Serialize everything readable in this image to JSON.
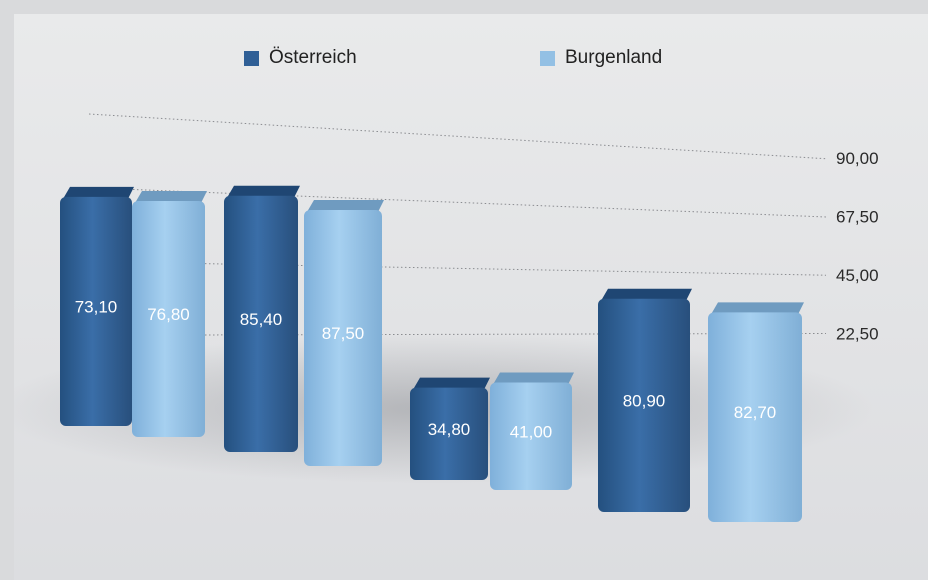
{
  "chart_data": {
    "type": "bar",
    "categories": [
      "",
      "",
      "",
      ""
    ],
    "series": [
      {
        "name": "Österreich",
        "color": "#2f5f96",
        "values": [
          73.1,
          85.4,
          34.8,
          80.9
        ],
        "labels": [
          "73,10",
          "85,40",
          "34,80",
          "80,90"
        ]
      },
      {
        "name": "Burgenland",
        "color": "#93c0e4",
        "values": [
          76.8,
          87.5,
          41.0,
          82.7
        ],
        "labels": [
          "76,80",
          "87,50",
          "41,00",
          "82,70"
        ]
      }
    ],
    "yticks": [
      "90,00",
      "67,50",
      "45,00",
      "22,50"
    ],
    "ylim": [
      0,
      90
    ],
    "grid": true,
    "legend": "top"
  }
}
